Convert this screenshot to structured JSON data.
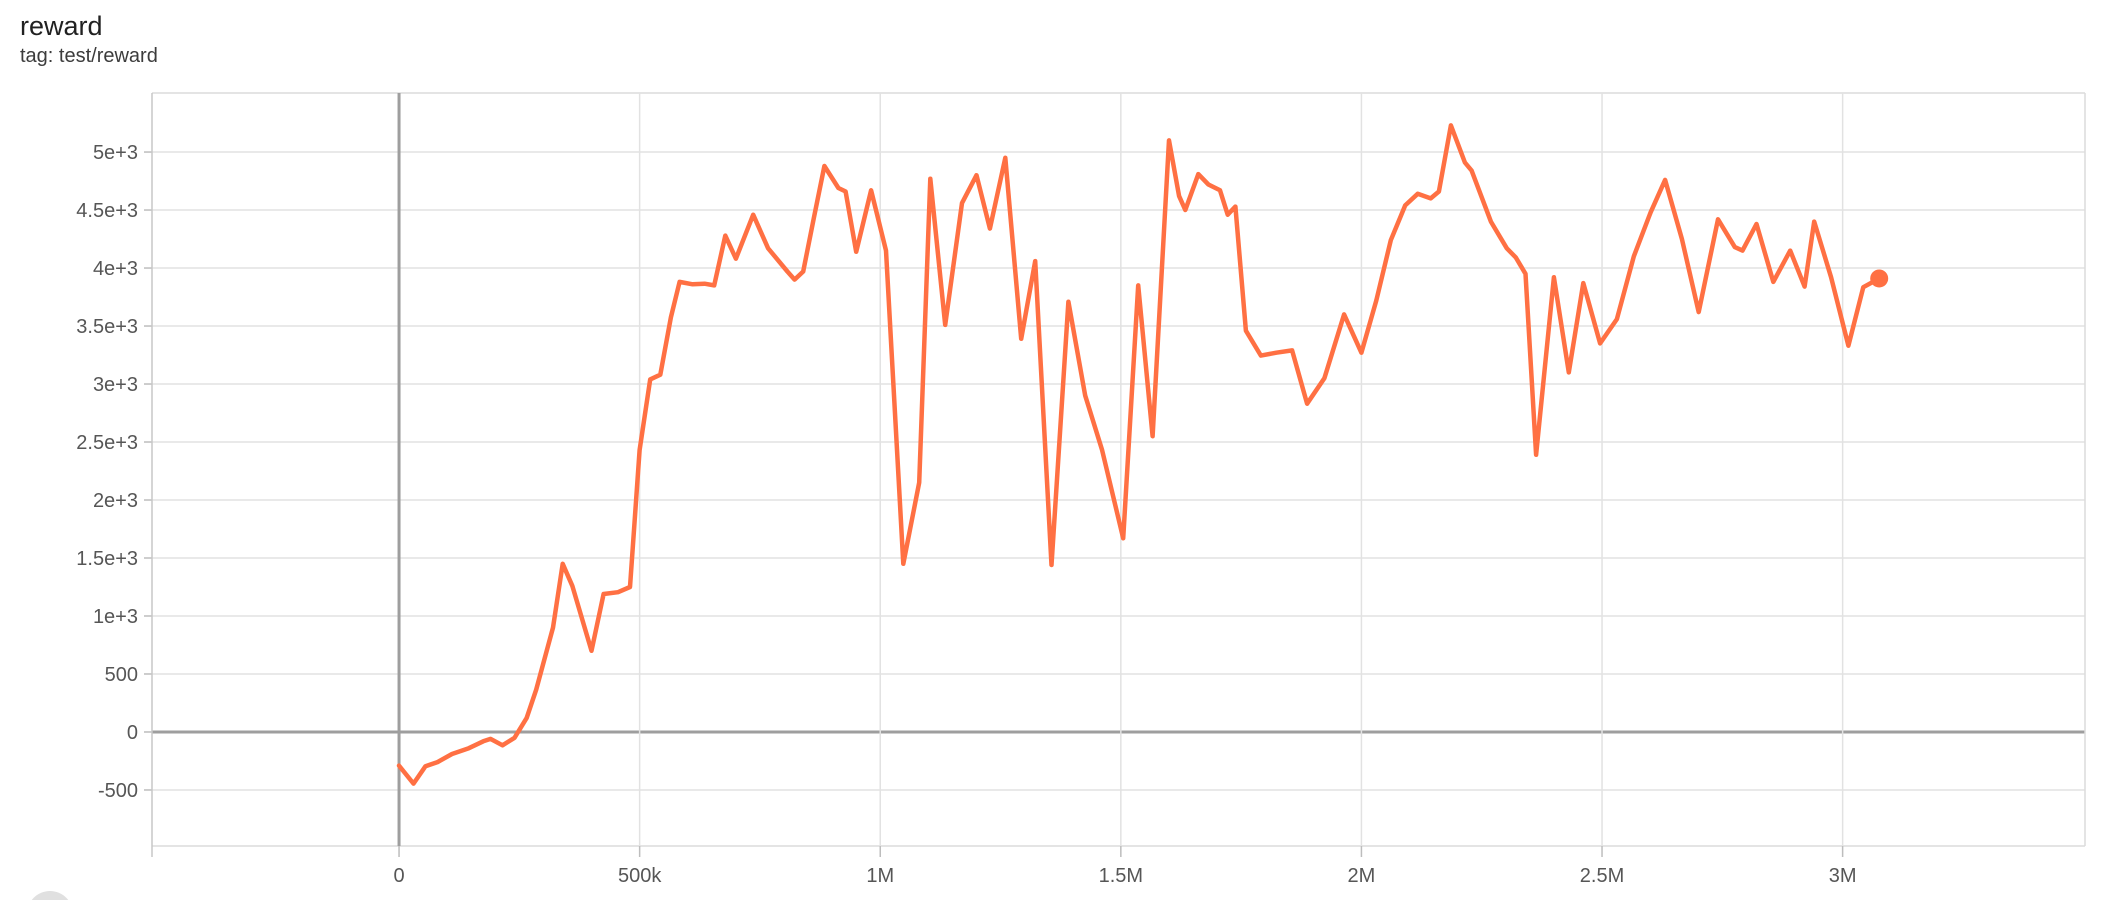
{
  "header": {
    "title": "reward",
    "subtitle": "tag: test/reward"
  },
  "colors": {
    "line": "#ff7043",
    "grid": "#e2e2e2",
    "zero_line": "#9e9e9e",
    "plot_border": "#dcdcdc",
    "tick_text": "#565656",
    "fab": "#e0e0e0"
  },
  "chart_data": {
    "type": "line",
    "title": "reward",
    "tag": "test/reward",
    "xlabel": "",
    "ylabel": "",
    "grid": true,
    "x_domain": [
      -513400,
      3503700
    ],
    "y_domain": [
      -983,
      5509
    ],
    "x_ticks": [
      {
        "step": 0,
        "label": "0"
      },
      {
        "step": 500000,
        "label": "500k"
      },
      {
        "step": 1000000,
        "label": "1M"
      },
      {
        "step": 1500000,
        "label": "1.5M"
      },
      {
        "step": 2000000,
        "label": "2M"
      },
      {
        "step": 2500000,
        "label": "2.5M"
      },
      {
        "step": 3000000,
        "label": "3M"
      }
    ],
    "y_ticks": [
      {
        "value": 5000,
        "label": "5e+3"
      },
      {
        "value": 4500,
        "label": "4.5e+3"
      },
      {
        "value": 4000,
        "label": "4e+3"
      },
      {
        "value": 3500,
        "label": "3.5e+3"
      },
      {
        "value": 3000,
        "label": "3e+3"
      },
      {
        "value": 2500,
        "label": "2.5e+3"
      },
      {
        "value": 2000,
        "label": "2e+3"
      },
      {
        "value": 1500,
        "label": "1.5e+3"
      },
      {
        "value": 1000,
        "label": "1e+3"
      },
      {
        "value": 500,
        "label": "500"
      },
      {
        "value": 0,
        "label": "0"
      },
      {
        "value": -500,
        "label": "-500"
      }
    ],
    "series": [
      {
        "name": "test/reward",
        "color": "#ff7043",
        "points": [
          [
            0,
            -290
          ],
          [
            30000,
            -445
          ],
          [
            55000,
            -295
          ],
          [
            80000,
            -260
          ],
          [
            110000,
            -190
          ],
          [
            145000,
            -140
          ],
          [
            175000,
            -80
          ],
          [
            190000,
            -60
          ],
          [
            215000,
            -115
          ],
          [
            240000,
            -50
          ],
          [
            265000,
            120
          ],
          [
            285000,
            365
          ],
          [
            320000,
            900
          ],
          [
            340000,
            1450
          ],
          [
            360000,
            1260
          ],
          [
            400000,
            700
          ],
          [
            425000,
            1190
          ],
          [
            455000,
            1205
          ],
          [
            480000,
            1250
          ],
          [
            500000,
            2430
          ],
          [
            522000,
            3040
          ],
          [
            543000,
            3080
          ],
          [
            565000,
            3575
          ],
          [
            583000,
            3880
          ],
          [
            610000,
            3860
          ],
          [
            635000,
            3865
          ],
          [
            655000,
            3850
          ],
          [
            678000,
            4280
          ],
          [
            700000,
            4080
          ],
          [
            736000,
            4460
          ],
          [
            767000,
            4170
          ],
          [
            807000,
            3970
          ],
          [
            822000,
            3900
          ],
          [
            840000,
            3970
          ],
          [
            862000,
            4430
          ],
          [
            884000,
            4880
          ],
          [
            913000,
            4690
          ],
          [
            928000,
            4660
          ],
          [
            950000,
            4140
          ],
          [
            981000,
            4670
          ],
          [
            1012000,
            4150
          ],
          [
            1048000,
            1450
          ],
          [
            1081000,
            2150
          ],
          [
            1104000,
            4770
          ],
          [
            1135000,
            3510
          ],
          [
            1170000,
            4560
          ],
          [
            1200000,
            4800
          ],
          [
            1228000,
            4340
          ],
          [
            1260000,
            4950
          ],
          [
            1293000,
            3390
          ],
          [
            1322000,
            4060
          ],
          [
            1356000,
            1440
          ],
          [
            1391000,
            3710
          ],
          [
            1426000,
            2900
          ],
          [
            1461000,
            2430
          ],
          [
            1505000,
            1670
          ],
          [
            1536000,
            3850
          ],
          [
            1566000,
            2550
          ],
          [
            1600000,
            5100
          ],
          [
            1621000,
            4620
          ],
          [
            1634000,
            4500
          ],
          [
            1661000,
            4810
          ],
          [
            1682000,
            4720
          ],
          [
            1706000,
            4670
          ],
          [
            1722000,
            4460
          ],
          [
            1738000,
            4530
          ],
          [
            1760000,
            3460
          ],
          [
            1791000,
            3245
          ],
          [
            1823000,
            3270
          ],
          [
            1856000,
            3290
          ],
          [
            1887000,
            2830
          ],
          [
            1923000,
            3050
          ],
          [
            1964000,
            3600
          ],
          [
            2000000,
            3270
          ],
          [
            2031000,
            3720
          ],
          [
            2061000,
            4240
          ],
          [
            2091000,
            4540
          ],
          [
            2117000,
            4640
          ],
          [
            2144000,
            4600
          ],
          [
            2161000,
            4660
          ],
          [
            2186000,
            5230
          ],
          [
            2215000,
            4910
          ],
          [
            2229000,
            4840
          ],
          [
            2269000,
            4400
          ],
          [
            2302000,
            4170
          ],
          [
            2321000,
            4090
          ],
          [
            2341000,
            3950
          ],
          [
            2363000,
            2390
          ],
          [
            2400000,
            3920
          ],
          [
            2431000,
            3100
          ],
          [
            2461000,
            3870
          ],
          [
            2496000,
            3350
          ],
          [
            2531000,
            3560
          ],
          [
            2566000,
            4100
          ],
          [
            2601000,
            4480
          ],
          [
            2631000,
            4760
          ],
          [
            2666000,
            4250
          ],
          [
            2701000,
            3620
          ],
          [
            2741000,
            4420
          ],
          [
            2776000,
            4180
          ],
          [
            2792000,
            4150
          ],
          [
            2821000,
            4380
          ],
          [
            2856000,
            3880
          ],
          [
            2891000,
            4150
          ],
          [
            2921000,
            3840
          ],
          [
            2941000,
            4400
          ],
          [
            2976000,
            3920
          ],
          [
            3012000,
            3330
          ],
          [
            3043000,
            3835
          ],
          [
            3076000,
            3910
          ]
        ]
      }
    ],
    "end_marker": {
      "step": 3076000,
      "value": 3910
    }
  }
}
